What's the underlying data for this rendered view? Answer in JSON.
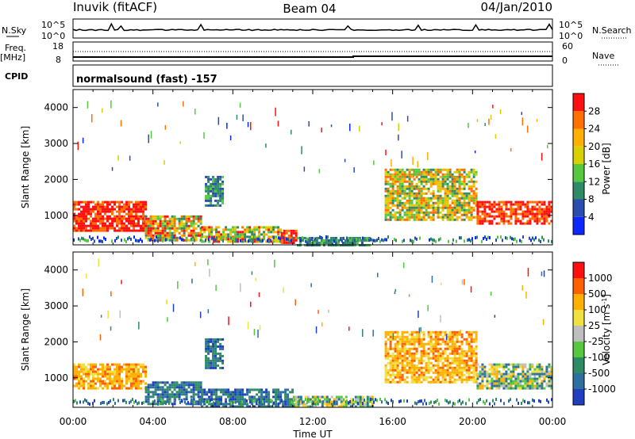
{
  "header": {
    "station": "Inuvik (fitACF)",
    "beam": "Beam 04",
    "date": "04/Jan/2010"
  },
  "strips": {
    "nsky_label": "N.Sky",
    "nsky_ticks": [
      "10^5",
      "10^0"
    ],
    "nsearch_label": "N.Search",
    "nsearch_ticks": [
      "10^5",
      "10^0"
    ],
    "freq_label": "Freq.",
    "freq_unit": "[MHz]",
    "freq_ticks": [
      "18",
      "8"
    ],
    "nave_label": "Nave",
    "nave_ticks": [
      "60",
      "0"
    ],
    "cpid_label": "CPID",
    "cpid_value": "normalsound (fast) -157"
  },
  "chart_data": [
    {
      "type": "heatmap",
      "panel": "power",
      "xlabel": "",
      "ylabel": "Slant Range [km]",
      "xlim": [
        0,
        24
      ],
      "ylim": [
        180,
        4500
      ],
      "yticks": [
        "1000",
        "2000",
        "3000",
        "4000"
      ],
      "colorbar": {
        "label": "Power [dB]",
        "ticks": [
          "4",
          "8",
          "12",
          "16",
          "20",
          "24",
          "28"
        ],
        "colors": [
          "#0a28ff",
          "#2a4eb0",
          "#2f8a66",
          "#55c840",
          "#d8d000",
          "#ffb000",
          "#ff7000",
          "#ff1010"
        ]
      },
      "regions": [
        {
          "t": [
            0.0,
            3.6
          ],
          "r": [
            600,
            1400
          ],
          "level": "high"
        },
        {
          "t": [
            3.6,
            6.4
          ],
          "r": [
            300,
            1000
          ],
          "level": "mixed"
        },
        {
          "t": [
            6.4,
            10.4
          ],
          "r": [
            300,
            700
          ],
          "level": "mixed"
        },
        {
          "t": [
            6.6,
            7.5
          ],
          "r": [
            1300,
            2100
          ],
          "level": "low"
        },
        {
          "t": [
            10.4,
            11.2
          ],
          "r": [
            250,
            600
          ],
          "level": "high"
        },
        {
          "t": [
            11.2,
            14.8
          ],
          "r": [
            200,
            400
          ],
          "level": "low"
        },
        {
          "t": [
            15.6,
            20.2
          ],
          "r": [
            900,
            2300
          ],
          "level": "medium"
        },
        {
          "t": [
            20.2,
            24.0
          ],
          "r": [
            800,
            1400
          ],
          "level": "high"
        }
      ]
    },
    {
      "type": "heatmap",
      "panel": "velocity",
      "xlabel": "Time UT",
      "ylabel": "Slant Range [km]",
      "xlim": [
        0,
        24
      ],
      "ylim": [
        180,
        4500
      ],
      "xticks": [
        "00:00",
        "04:00",
        "08:00",
        "12:00",
        "16:00",
        "20:00",
        "00:00"
      ],
      "yticks": [
        "1000",
        "2000",
        "3000",
        "4000"
      ],
      "colorbar": {
        "label": "Velocity [m s",
        "label_sup": "-1",
        "label_end": "]",
        "ticks": [
          "1000",
          "500",
          "100",
          "25",
          "-25",
          "-100",
          "-500",
          "-1000"
        ],
        "colors": [
          "#1f3fc0",
          "#2f6fa0",
          "#2f8a66",
          "#55c840",
          "#bfbfbf",
          "#f0e040",
          "#ffb000",
          "#ff6000",
          "#ff1010"
        ]
      },
      "regions": [
        {
          "t": [
            0.0,
            3.6
          ],
          "r": [
            700,
            1400
          ],
          "level": "away"
        },
        {
          "t": [
            3.6,
            6.4
          ],
          "r": [
            300,
            900
          ],
          "level": "toward"
        },
        {
          "t": [
            6.4,
            11.0
          ],
          "r": [
            200,
            700
          ],
          "level": "toward"
        },
        {
          "t": [
            6.6,
            7.5
          ],
          "r": [
            1300,
            2100
          ],
          "level": "toward"
        },
        {
          "t": [
            11.0,
            15.0
          ],
          "r": [
            200,
            500
          ],
          "level": "mixed"
        },
        {
          "t": [
            15.6,
            20.2
          ],
          "r": [
            900,
            2300
          ],
          "level": "away"
        },
        {
          "t": [
            20.2,
            24.0
          ],
          "r": [
            700,
            1400
          ],
          "level": "mixed"
        }
      ]
    }
  ]
}
